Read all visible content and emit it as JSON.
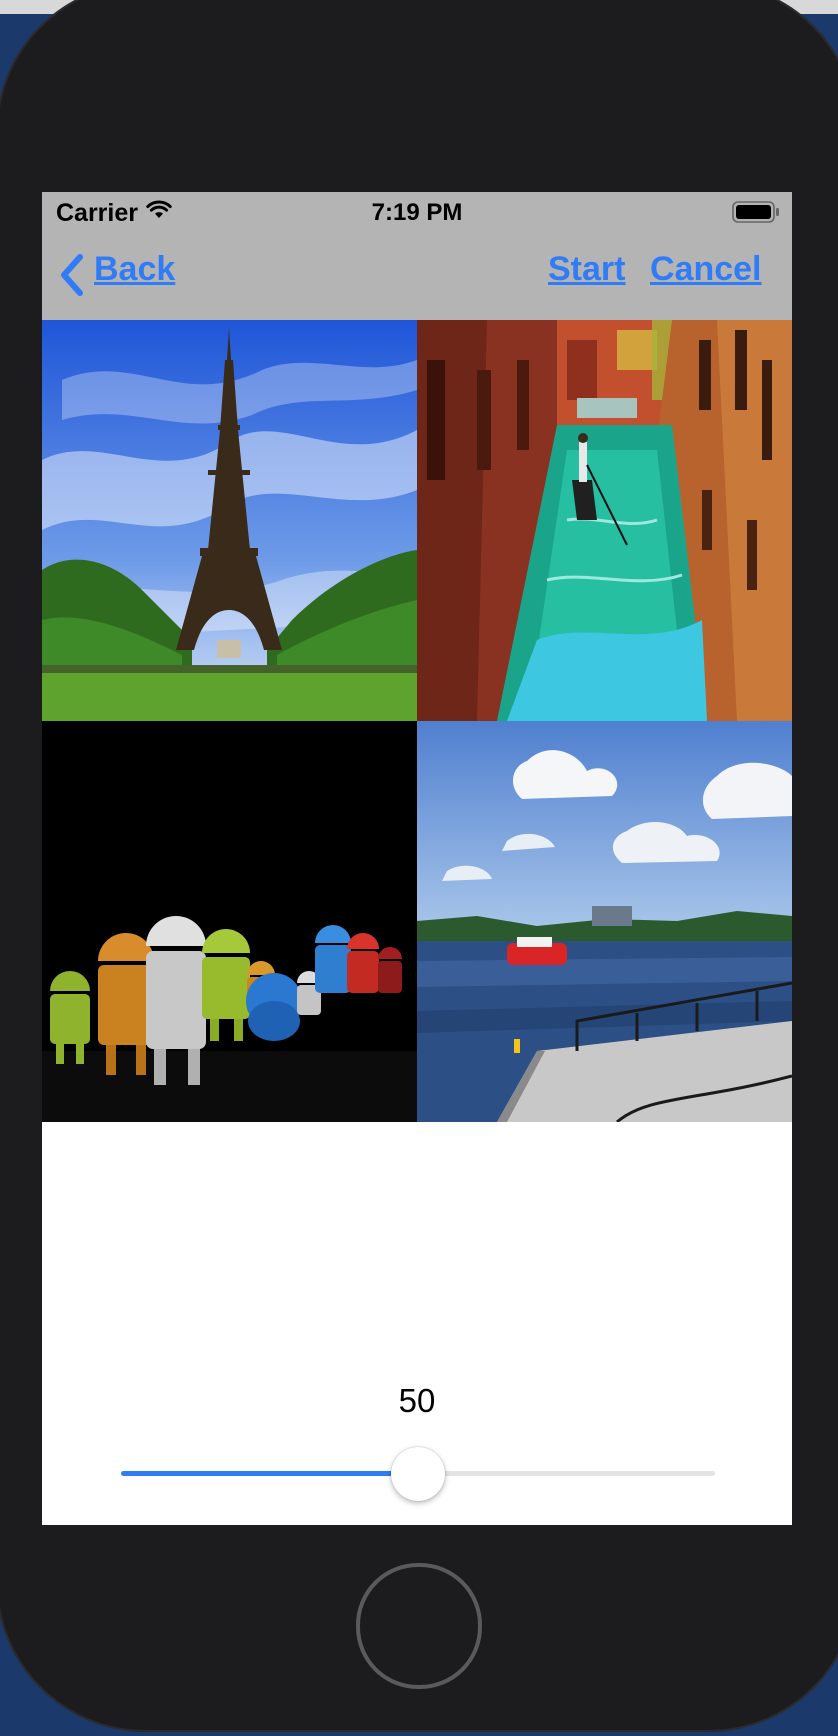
{
  "status_bar": {
    "carrier": "Carrier",
    "time": "7:19 PM",
    "wifi_icon": "wifi-icon",
    "battery_icon": "battery-icon"
  },
  "nav": {
    "back_label": "Back",
    "start_label": "Start",
    "cancel_label": "Cancel",
    "tint_color": "#2f7cf6",
    "bar_color": "#b4b4b4"
  },
  "photos": [
    {
      "subject": "eiffel-tower"
    },
    {
      "subject": "venice-canal-gondola"
    },
    {
      "subject": "android-figures"
    },
    {
      "subject": "harbor-boat-pier"
    }
  ],
  "slider": {
    "value_text": "50",
    "fraction": 0.5,
    "fill_color": "#2f7cf6"
  }
}
